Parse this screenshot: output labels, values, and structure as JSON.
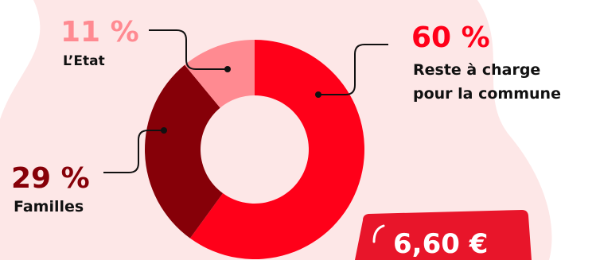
{
  "colors": {
    "background_blob": "#fde7e7",
    "commune": "#ff0019",
    "familles": "#860008",
    "etat": "#ff8a91",
    "leader": "#111111",
    "badge": "#e8152a"
  },
  "chart_data": {
    "type": "pie",
    "donut": true,
    "title": "",
    "unit": "%",
    "slices": [
      {
        "key": "commune",
        "value": 60,
        "pct_label": "60 %",
        "label_lines": [
          "Reste à charge",
          "pour la commune"
        ]
      },
      {
        "key": "familles",
        "value": 29,
        "pct_label": "29 %",
        "label_lines": [
          "Familles"
        ]
      },
      {
        "key": "etat",
        "value": 11,
        "pct_label": "11 %",
        "label_lines": [
          "L’Etat"
        ]
      }
    ]
  },
  "badge": {
    "text": "6,60 €",
    "icon": "quote-mark-icon"
  }
}
